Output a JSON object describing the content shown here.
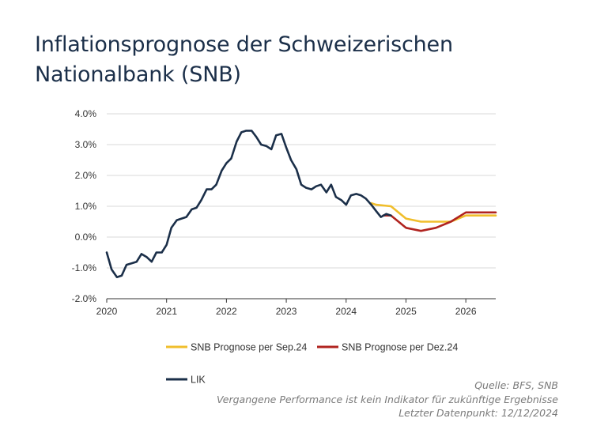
{
  "title": "Inflationsprognose der Schweizerischen Nationalbank (SNB)",
  "notes": {
    "source": "Quelle: BFS, SNB",
    "disclaimer": "Vergangene Performance ist kein Indikator für zukünftige Ergebnisse",
    "last_datapoint": "Letzter Datenpunkt: 12/12/2024"
  },
  "colors": {
    "lik": "#1b2f49",
    "sep": "#f0be2c",
    "dez": "#b0231f",
    "grid": "#d9d9d9",
    "axis": "#333333"
  },
  "chart_data": {
    "type": "line",
    "title": "Inflationsprognose der Schweizerischen Nationalbank (SNB)",
    "xlabel": "",
    "ylabel": "",
    "xlim": [
      2020,
      2026.5
    ],
    "ylim": [
      -2.0,
      4.0
    ],
    "y_ticks": [
      4.0,
      3.0,
      2.0,
      1.0,
      0.0,
      -1.0,
      -2.0
    ],
    "y_tick_labels": [
      "4.0%",
      "3.0%",
      "2.0%",
      "1.0%",
      "0.0%",
      "-1.0%",
      "-2.0%"
    ],
    "x_ticks": [
      2020,
      2021,
      2022,
      2023,
      2024,
      2025,
      2026
    ],
    "x_tick_labels": [
      "2020",
      "2021",
      "2022",
      "2023",
      "2024",
      "2025",
      "2026"
    ],
    "grid": true,
    "legend_position": "bottom",
    "series": [
      {
        "name": "SNB Prognose per Sep.24",
        "color_key": "sep",
        "x": [
          2024.42,
          2024.5,
          2024.75,
          2025.0,
          2025.25,
          2025.5,
          2025.75,
          2026.0,
          2026.25,
          2026.5
        ],
        "y": [
          1.1,
          1.05,
          1.0,
          0.6,
          0.5,
          0.5,
          0.5,
          0.7,
          0.7,
          0.7
        ]
      },
      {
        "name": "SNB Prognose per Dez.24",
        "color_key": "dez",
        "x": [
          2024.62,
          2024.75,
          2025.0,
          2025.25,
          2025.5,
          2025.75,
          2026.0,
          2026.25,
          2026.5
        ],
        "y": [
          0.7,
          0.7,
          0.3,
          0.2,
          0.3,
          0.5,
          0.8,
          0.8,
          0.8
        ]
      },
      {
        "name": "LIK",
        "color_key": "lik",
        "x": [
          2020.0,
          2020.08,
          2020.17,
          2020.25,
          2020.33,
          2020.42,
          2020.5,
          2020.58,
          2020.67,
          2020.75,
          2020.83,
          2020.92,
          2021.0,
          2021.08,
          2021.17,
          2021.25,
          2021.33,
          2021.42,
          2021.5,
          2021.58,
          2021.67,
          2021.75,
          2021.83,
          2021.92,
          2022.0,
          2022.08,
          2022.17,
          2022.25,
          2022.33,
          2022.42,
          2022.5,
          2022.58,
          2022.67,
          2022.75,
          2022.83,
          2022.92,
          2023.0,
          2023.08,
          2023.17,
          2023.25,
          2023.33,
          2023.42,
          2023.5,
          2023.58,
          2023.67,
          2023.75,
          2023.83,
          2023.92,
          2024.0,
          2024.08,
          2024.17,
          2024.25,
          2024.33,
          2024.42,
          2024.5,
          2024.58,
          2024.67,
          2024.75
        ],
        "y": [
          -0.5,
          -1.05,
          -1.3,
          -1.25,
          -0.9,
          -0.85,
          -0.8,
          -0.55,
          -0.65,
          -0.8,
          -0.5,
          -0.5,
          -0.25,
          0.3,
          0.55,
          0.6,
          0.65,
          0.9,
          0.95,
          1.2,
          1.55,
          1.55,
          1.7,
          2.15,
          2.4,
          2.55,
          3.1,
          3.4,
          3.45,
          3.45,
          3.25,
          3.0,
          2.95,
          2.85,
          3.3,
          3.35,
          2.9,
          2.5,
          2.2,
          1.7,
          1.6,
          1.55,
          1.65,
          1.7,
          1.45,
          1.7,
          1.3,
          1.2,
          1.05,
          1.35,
          1.4,
          1.35,
          1.25,
          1.05,
          0.85,
          0.65,
          0.75,
          0.7
        ]
      }
    ]
  }
}
